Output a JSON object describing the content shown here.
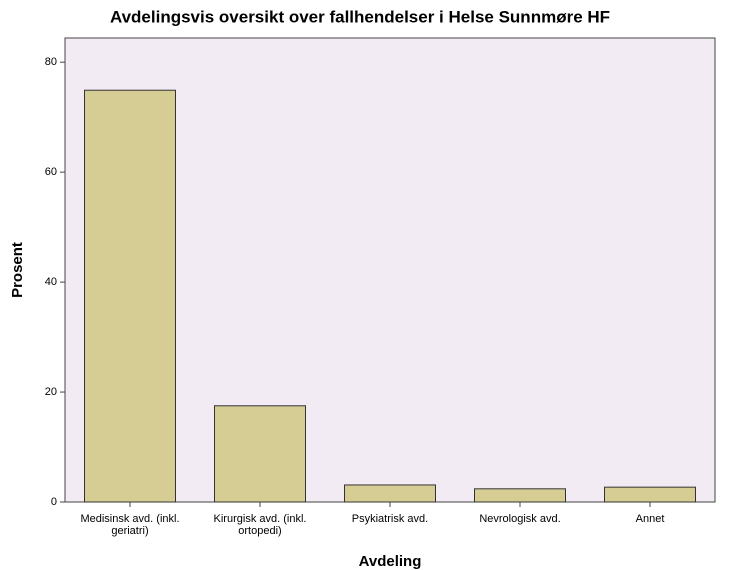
{
  "chart_data": {
    "type": "bar",
    "title": "Avdelingsvis oversikt over fallhendelser i Helse Sunnmøre HF",
    "x_label": "Avdeling",
    "y_label": "Prosent",
    "categories": [
      "Medisinsk avd. (inkl. geriatri)",
      "Kirurgisk avd. (inkl. ortopedi)",
      "Psykiatrisk avd.",
      "Nevrologisk avd.",
      "Annet"
    ],
    "values": [
      74.9,
      17.5,
      3.1,
      2.4,
      2.7
    ],
    "color": "#d6cd95",
    "ylim": [
      0,
      84.4
    ],
    "yticks": [
      0,
      20,
      40,
      60,
      80
    ],
    "grid": false
  }
}
